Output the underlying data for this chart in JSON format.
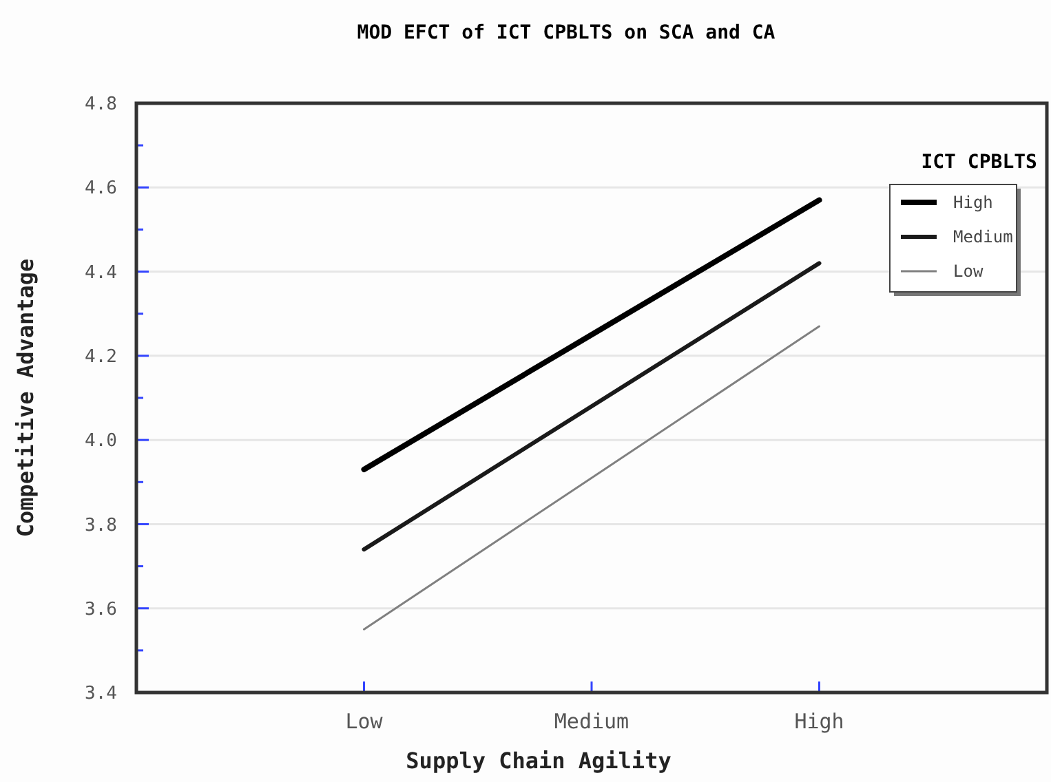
{
  "chart_data": {
    "type": "line",
    "title": "MOD EFCT of ICT CPBLTS on SCA and CA",
    "xlabel": "Supply Chain Agility",
    "ylabel": "Competitive Advantage",
    "legend_title": "ICT CPBLTS",
    "categories": [
      "Low",
      "Medium",
      "High"
    ],
    "series": [
      {
        "name": "High",
        "color": "#000000",
        "values": [
          3.93,
          4.25,
          4.57
        ]
      },
      {
        "name": "Medium",
        "color": "#1a1a1a",
        "values": [
          3.74,
          4.08,
          4.42
        ]
      },
      {
        "name": "Low",
        "color": "#808080",
        "values": [
          3.55,
          3.91,
          4.27
        ]
      }
    ],
    "ylim": [
      3.4,
      4.8
    ],
    "yticks": [
      3.4,
      {
        "value": 3.5,
        "label": null
      },
      3.6,
      {
        "value": 3.7,
        "label": null
      },
      3.8,
      {
        "value": 3.9,
        "label": null
      },
      {
        "value": 4.0,
        "label": "4.0"
      },
      {
        "value": 4.1,
        "label": null
      },
      4.2,
      {
        "value": 4.3,
        "label": null
      },
      4.4,
      {
        "value": 4.5,
        "label": null
      },
      4.6,
      {
        "value": 4.7,
        "label": null
      },
      4.8
    ],
    "grid": "y",
    "legend": "top right",
    "marker": "none",
    "line_style": "solid"
  }
}
